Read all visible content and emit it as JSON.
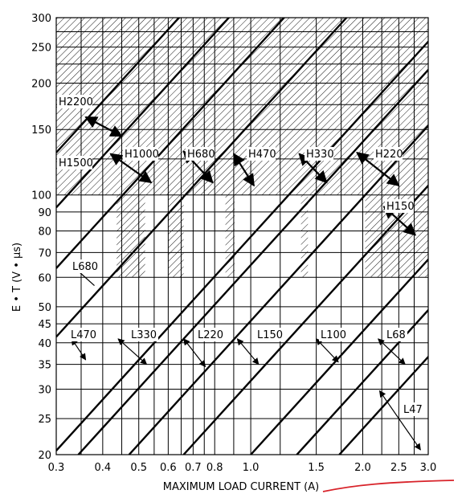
{
  "chart_data": {
    "type": "line",
    "title": "",
    "xlabel": "MAXIMUM LOAD CURRENT (A)",
    "ylabel": "E • T (V • µs)",
    "x_scale": "log",
    "y_scale": "log",
    "xlim": [
      0.3,
      3.0
    ],
    "ylim": [
      20,
      300
    ],
    "grid": true,
    "x_ticks": [
      {
        "value": 0.3,
        "label": "0.3"
      },
      {
        "value": 0.4,
        "label": "0.4"
      },
      {
        "value": 0.5,
        "label": "0.5"
      },
      {
        "value": 0.6,
        "label": "0.6"
      },
      {
        "value": 0.7,
        "label": "0.7"
      },
      {
        "value": 0.8,
        "label": "0.8"
      },
      {
        "value": 1.0,
        "label": "1.0"
      },
      {
        "value": 1.5,
        "label": "1.5"
      },
      {
        "value": 2.0,
        "label": "2.0"
      },
      {
        "value": 2.5,
        "label": "2.5"
      },
      {
        "value": 3.0,
        "label": "3.0"
      }
    ],
    "x_minor_grid": [
      0.35,
      0.45,
      0.55,
      0.65,
      0.75,
      0.9,
      1.2,
      1.75,
      2.25,
      2.75
    ],
    "y_ticks": [
      {
        "value": 20,
        "label": "20"
      },
      {
        "value": 25,
        "label": "25"
      },
      {
        "value": 30,
        "label": "30"
      },
      {
        "value": 35,
        "label": "35"
      },
      {
        "value": 40,
        "label": "40"
      },
      {
        "value": 45,
        "label": "45"
      },
      {
        "value": 50,
        "label": "50"
      },
      {
        "value": 60,
        "label": "60"
      },
      {
        "value": 70,
        "label": "70"
      },
      {
        "value": 80,
        "label": "80"
      },
      {
        "value": 90,
        "label": "90"
      },
      {
        "value": 100,
        "label": "100"
      },
      {
        "value": 150,
        "label": "150"
      },
      {
        "value": 200,
        "label": "200"
      },
      {
        "value": 250,
        "label": "250"
      },
      {
        "value": 300,
        "label": "300"
      }
    ],
    "y_minor_grid": [
      125,
      175,
      225,
      275
    ],
    "boundary_lines_start_x": [
      0.3,
      0.3,
      0.3,
      0.3,
      0.3,
      0.344,
      0.471,
      0.66,
      1.0,
      1.33,
      1.73
    ],
    "boundary_lines_start_y": [
      130,
      92.5,
      63.5,
      41.5,
      20.5,
      20,
      20,
      20,
      20,
      20,
      20
    ],
    "hatched_region": {
      "min_y_full": 100,
      "partial_min_y": 60,
      "partial_min_y_x": [
        [
          0.436,
          0.52
        ],
        [
          0.6,
          0.66
        ],
        [
          0.855,
          0.905
        ],
        [
          1.365,
          1.425
        ],
        [
          2.03,
          3.0
        ]
      ]
    },
    "annotations": [
      {
        "label": "H2200",
        "pointer": "arrow",
        "from": [
          0.36,
          162
        ],
        "to": [
          0.45,
          144
        ]
      },
      {
        "label": "H1500",
        "pointer": "arrow",
        "from": [
          0.42,
          129
        ],
        "to": [
          0.54,
          108
        ]
      },
      {
        "label": "H1000",
        "pointer": "none"
      },
      {
        "label": "H680",
        "pointer": "arrow",
        "from": [
          0.66,
          131
        ],
        "to": [
          0.79,
          108
        ]
      },
      {
        "label": "H470",
        "pointer": "arrow",
        "from": [
          0.9,
          129
        ],
        "to": [
          1.02,
          106
        ]
      },
      {
        "label": "H330",
        "pointer": "arrow",
        "from": [
          1.35,
          129
        ],
        "to": [
          1.6,
          108
        ]
      },
      {
        "label": "H220",
        "pointer": "arrow",
        "from": [
          1.93,
          130
        ],
        "to": [
          2.5,
          106
        ]
      },
      {
        "label": "H150",
        "pointer": "arrow",
        "from": [
          2.28,
          93
        ],
        "to": [
          2.77,
          78
        ]
      },
      {
        "label": "L680",
        "pointer": "line",
        "from": [
          0.34,
          63
        ],
        "to": [
          0.38,
          57
        ]
      },
      {
        "label": "L470",
        "pointer": "arrow",
        "from": [
          0.33,
          41
        ],
        "to": [
          0.36,
          36
        ]
      },
      {
        "label": "L330",
        "pointer": "arrow",
        "from": [
          0.44,
          41
        ],
        "to": [
          0.525,
          35
        ]
      },
      {
        "label": "L220",
        "pointer": "arrow",
        "from": [
          0.66,
          41
        ],
        "to": [
          0.755,
          34.5
        ]
      },
      {
        "label": "L150",
        "pointer": "arrow",
        "from": [
          0.92,
          41
        ],
        "to": [
          1.05,
          35
        ]
      },
      {
        "label": "L100",
        "pointer": "arrow",
        "from": [
          1.5,
          41
        ],
        "to": [
          1.72,
          35.5
        ]
      },
      {
        "label": "L68",
        "pointer": "arrow",
        "from": [
          2.2,
          41
        ],
        "to": [
          2.6,
          35
        ]
      },
      {
        "label": "L47",
        "pointer": "arrow",
        "from": [
          2.22,
          29.7
        ],
        "to": [
          2.86,
          20.6
        ]
      }
    ]
  }
}
